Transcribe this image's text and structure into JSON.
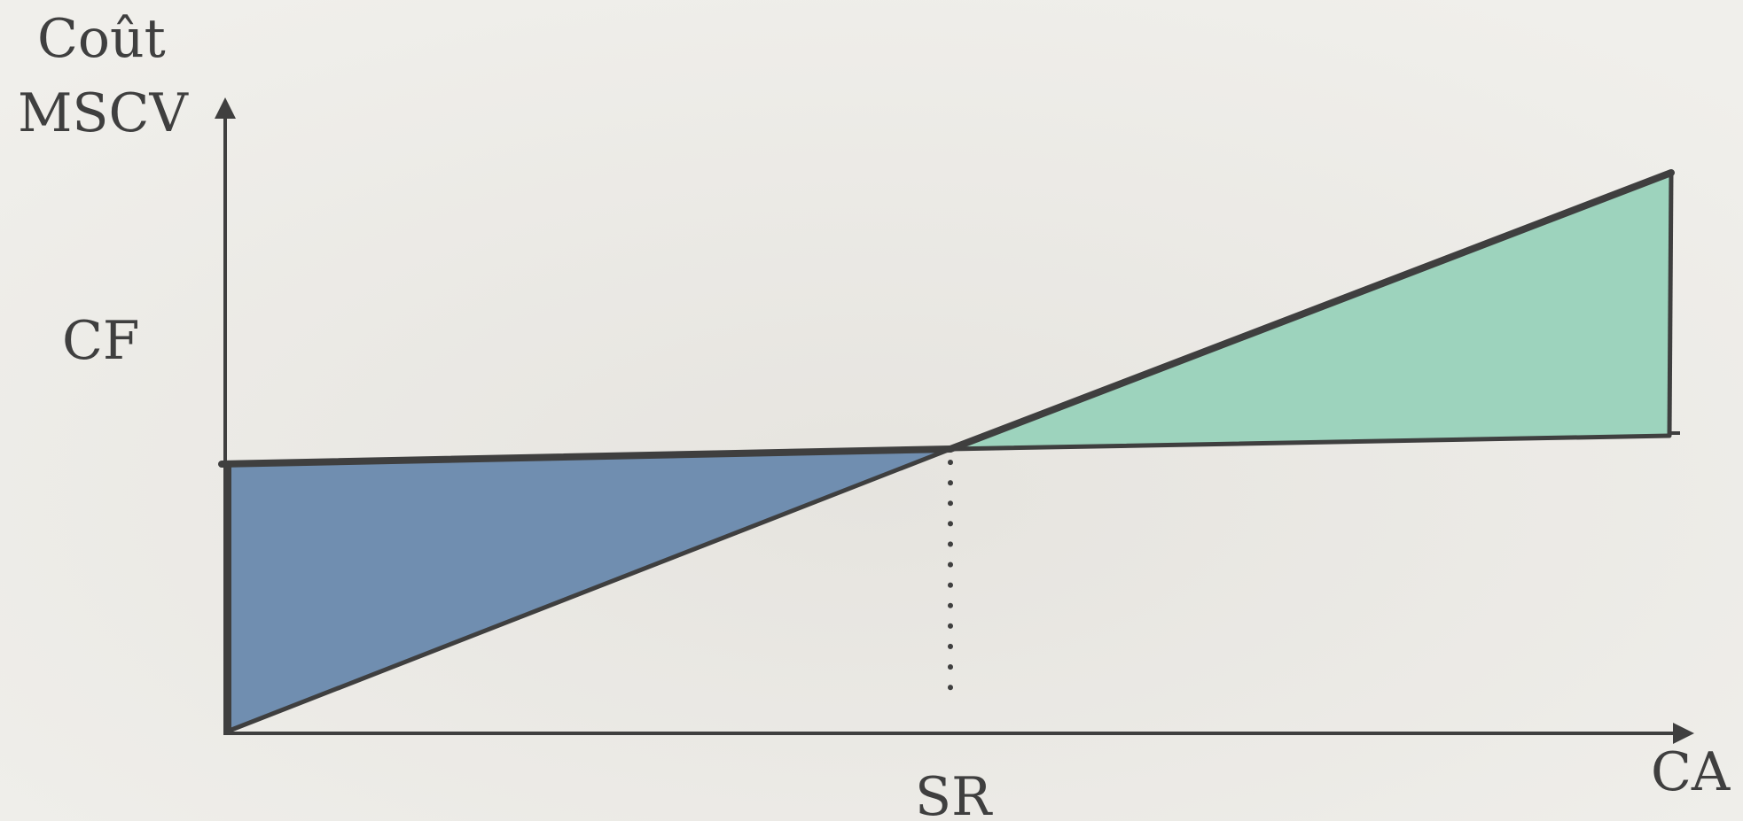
{
  "labels": {
    "y_axis_line1": "Coût",
    "y_axis_line2": "MSCV",
    "cf": "CF",
    "sr": "SR",
    "x_axis": "CA"
  },
  "colors": {
    "background": "#ecebe7",
    "axis": "#3f3f3f",
    "loss_area": "#708eb0",
    "profit_area": "#9dd3bd",
    "line": "#3f3f3f"
  }
}
